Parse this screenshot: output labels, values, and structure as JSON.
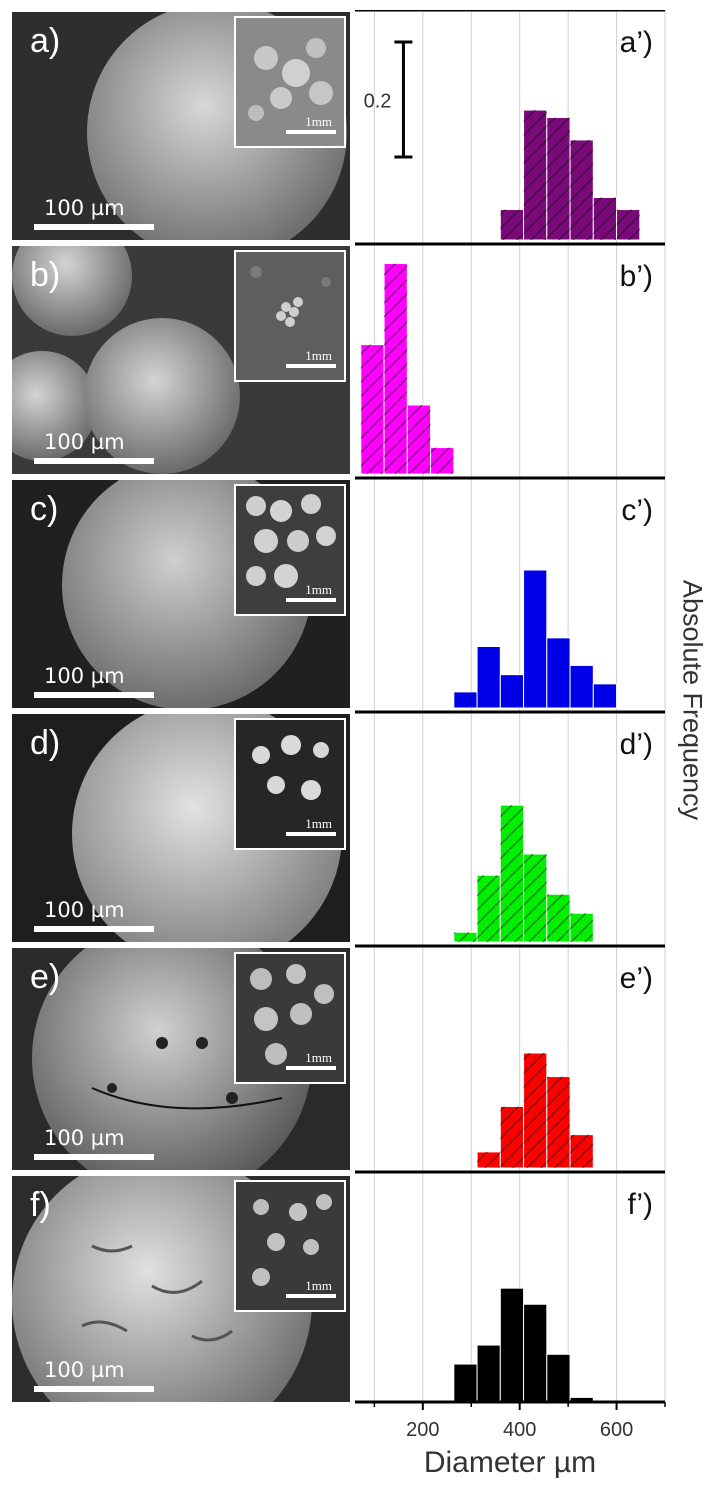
{
  "sem_panels": [
    {
      "label": "a)",
      "scale": "100 µm",
      "inset_scale": "1mm"
    },
    {
      "label": "b)",
      "scale": "100 µm",
      "inset_scale": "1mm"
    },
    {
      "label": "c)",
      "scale": "100 µm",
      "inset_scale": "1mm"
    },
    {
      "label": "d)",
      "scale": "100 µm",
      "inset_scale": "1mm"
    },
    {
      "label": "e)",
      "scale": "100 µm",
      "inset_scale": "1mm"
    },
    {
      "label": "f)",
      "scale": "100 µm",
      "inset_scale": "1mm"
    }
  ],
  "chart_data": {
    "type": "bar",
    "xlabel": "Diameter µm",
    "ylabel": "Absolute Frequency",
    "xlim": [
      60,
      700
    ],
    "xticks": [
      200,
      400,
      600
    ],
    "grid": "vertical",
    "bin_width": 48,
    "scale_bar": {
      "label": "0.2",
      "value": 0.2
    },
    "panels": [
      {
        "label": "a’)",
        "color": "#7a0a7a",
        "hatched": true,
        "x": [
          384,
          432,
          480,
          528,
          576,
          624
        ],
        "values": [
          0.053,
          0.226,
          0.213,
          0.174,
          0.074,
          0.053
        ]
      },
      {
        "label": "b’)",
        "color": "#ff00ff",
        "hatched": true,
        "x": [
          96,
          144,
          192,
          240
        ],
        "values": [
          0.225,
          0.366,
          0.12,
          0.046
        ]
      },
      {
        "label": "c’)",
        "color": "#0000e6",
        "hatched": false,
        "x": [
          288,
          336,
          384,
          432,
          480,
          528,
          576
        ],
        "values": [
          0.028,
          0.107,
          0.058,
          0.24,
          0.122,
          0.074,
          0.042
        ]
      },
      {
        "label": "d’)",
        "color": "#00ee00",
        "hatched": true,
        "x": [
          288,
          336,
          384,
          432,
          480,
          528
        ],
        "values": [
          0.017,
          0.116,
          0.238,
          0.153,
          0.083,
          0.05
        ]
      },
      {
        "label": "e’)",
        "color": "#ff0000",
        "hatched": true,
        "x": [
          336,
          384,
          432,
          480,
          528
        ],
        "values": [
          0.028,
          0.107,
          0.2,
          0.159,
          0.058
        ]
      },
      {
        "label": "f’)",
        "color": "#000000",
        "hatched": false,
        "x": [
          288,
          336,
          384,
          432,
          480,
          528
        ],
        "values": [
          0.066,
          0.099,
          0.198,
          0.17,
          0.083,
          0.008
        ]
      }
    ]
  }
}
